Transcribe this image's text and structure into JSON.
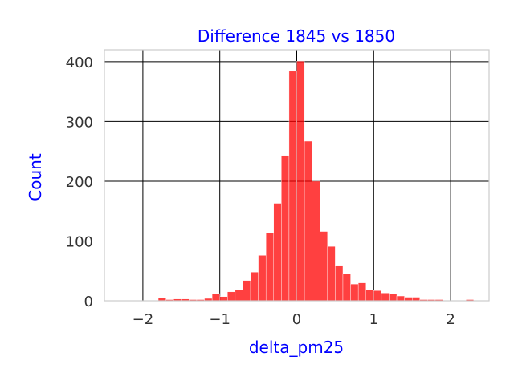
{
  "chart_data": {
    "type": "bar",
    "title": "Difference 1845 vs 1850",
    "xlabel": "delta_pm25",
    "ylabel": "Count",
    "xlim": [
      -2.5,
      2.5
    ],
    "ylim": [
      0,
      420
    ],
    "x_ticks": [
      -2,
      -1,
      0,
      1,
      2
    ],
    "x_tick_labels": [
      "−2",
      "−1",
      "0",
      "1",
      "2"
    ],
    "y_ticks": [
      0,
      100,
      200,
      300,
      400
    ],
    "y_tick_labels": [
      "0",
      "100",
      "200",
      "300",
      "400"
    ],
    "grid": true,
    "bin_width": 0.1,
    "bins": [
      {
        "x0": -1.8,
        "count": 5
      },
      {
        "x0": -1.7,
        "count": 2
      },
      {
        "x0": -1.6,
        "count": 3
      },
      {
        "x0": -1.5,
        "count": 3
      },
      {
        "x0": -1.4,
        "count": 2
      },
      {
        "x0": -1.3,
        "count": 2
      },
      {
        "x0": -1.2,
        "count": 4
      },
      {
        "x0": -1.1,
        "count": 12
      },
      {
        "x0": -1.0,
        "count": 7
      },
      {
        "x0": -0.9,
        "count": 15
      },
      {
        "x0": -0.8,
        "count": 18
      },
      {
        "x0": -0.7,
        "count": 34
      },
      {
        "x0": -0.6,
        "count": 48
      },
      {
        "x0": -0.5,
        "count": 76
      },
      {
        "x0": -0.4,
        "count": 113
      },
      {
        "x0": -0.3,
        "count": 163
      },
      {
        "x0": -0.2,
        "count": 243
      },
      {
        "x0": -0.1,
        "count": 384
      },
      {
        "x0": 0.0,
        "count": 401
      },
      {
        "x0": 0.1,
        "count": 267
      },
      {
        "x0": 0.2,
        "count": 200
      },
      {
        "x0": 0.3,
        "count": 116
      },
      {
        "x0": 0.4,
        "count": 91
      },
      {
        "x0": 0.5,
        "count": 58
      },
      {
        "x0": 0.6,
        "count": 45
      },
      {
        "x0": 0.7,
        "count": 28
      },
      {
        "x0": 0.8,
        "count": 30
      },
      {
        "x0": 0.9,
        "count": 18
      },
      {
        "x0": 1.0,
        "count": 17
      },
      {
        "x0": 1.1,
        "count": 13
      },
      {
        "x0": 1.2,
        "count": 11
      },
      {
        "x0": 1.3,
        "count": 8
      },
      {
        "x0": 1.4,
        "count": 6
      },
      {
        "x0": 1.5,
        "count": 6
      },
      {
        "x0": 1.6,
        "count": 2
      },
      {
        "x0": 1.7,
        "count": 2
      },
      {
        "x0": 1.8,
        "count": 2
      },
      {
        "x0": 2.2,
        "count": 2
      }
    ],
    "colors": {
      "bar": "#ff0000",
      "bar_edge": "#ffffff",
      "title": "#0000ff",
      "axis_label": "#0000ff",
      "grid": "#000000",
      "frame": "#cccccc",
      "tick_text": "#333333"
    }
  }
}
